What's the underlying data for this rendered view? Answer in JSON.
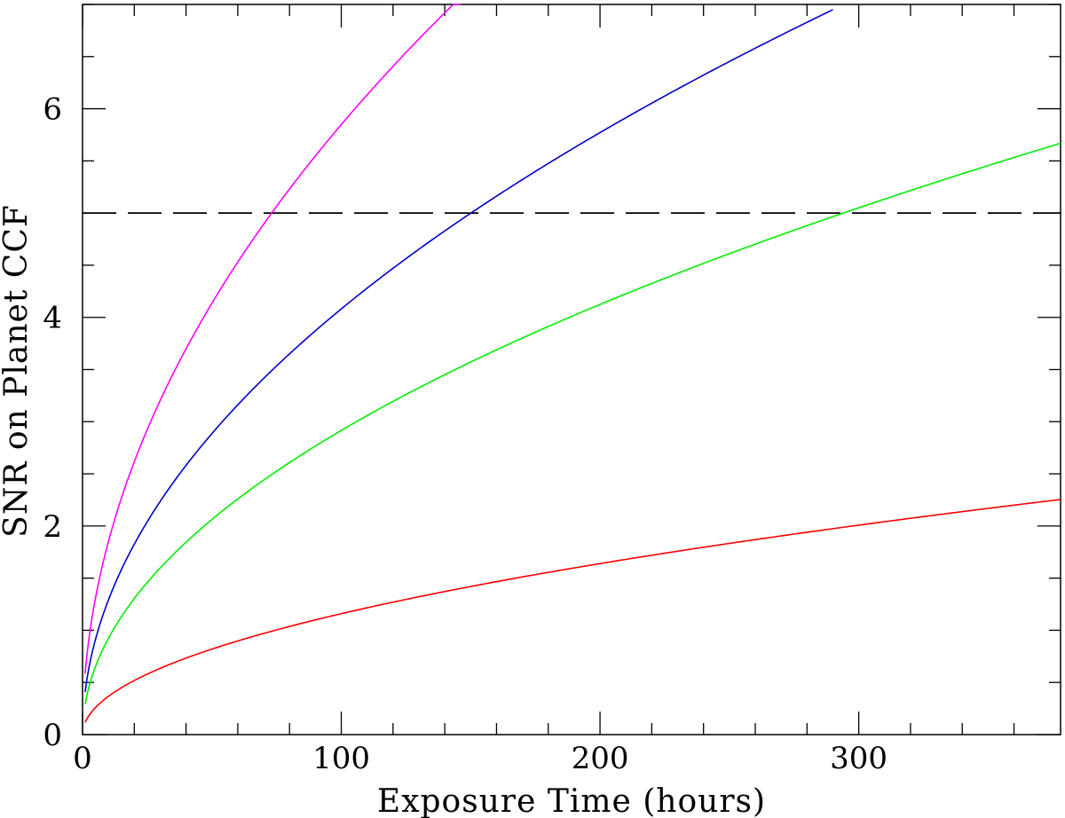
{
  "chart_data": {
    "type": "line",
    "title": "",
    "xlabel": "Exposure Time (hours)",
    "ylabel": "SNR on Planet CCF",
    "xlim": [
      0,
      378
    ],
    "ylim": [
      0,
      7
    ],
    "grid": false,
    "legend": "none",
    "x_major_ticks": [
      0,
      100,
      200,
      300
    ],
    "x_minor_step": 20,
    "y_major_ticks": [
      0,
      2,
      4,
      6
    ],
    "y_minor_step": 0.5,
    "x_tick_labels": [
      "0",
      "100",
      "200",
      "300"
    ],
    "y_tick_labels": [
      "0",
      "2",
      "4",
      "6"
    ],
    "threshold": {
      "y": 5,
      "style": "dashed",
      "color": "#000000"
    },
    "series": [
      {
        "color": "#ff00ff",
        "x": [
          1,
          5,
          10,
          20,
          40,
          60,
          72,
          100,
          130,
          146
        ],
        "y": [
          0.59,
          1.31,
          1.85,
          2.62,
          3.71,
          4.54,
          4.98,
          5.87,
          6.69,
          7.0
        ]
      },
      {
        "color": "#0000cc",
        "x": [
          1,
          5,
          10,
          20,
          50,
          100,
          150,
          200,
          250,
          290
        ],
        "y": [
          0.41,
          0.91,
          1.29,
          1.83,
          2.89,
          4.08,
          5.0,
          5.77,
          6.45,
          6.95
        ]
      },
      {
        "color": "#00ee00",
        "x": [
          1,
          5,
          10,
          20,
          50,
          100,
          150,
          200,
          250,
          294,
          340,
          378
        ],
        "y": [
          0.29,
          0.65,
          0.92,
          1.3,
          2.06,
          2.92,
          3.57,
          4.12,
          4.61,
          5.0,
          5.38,
          5.67
        ]
      },
      {
        "color": "#ff0000",
        "x": [
          1,
          5,
          10,
          20,
          50,
          100,
          150,
          200,
          250,
          300,
          350,
          378
        ],
        "y": [
          0.12,
          0.26,
          0.37,
          0.52,
          0.82,
          1.16,
          1.42,
          1.64,
          1.83,
          2.0,
          2.17,
          2.26
        ]
      }
    ]
  }
}
